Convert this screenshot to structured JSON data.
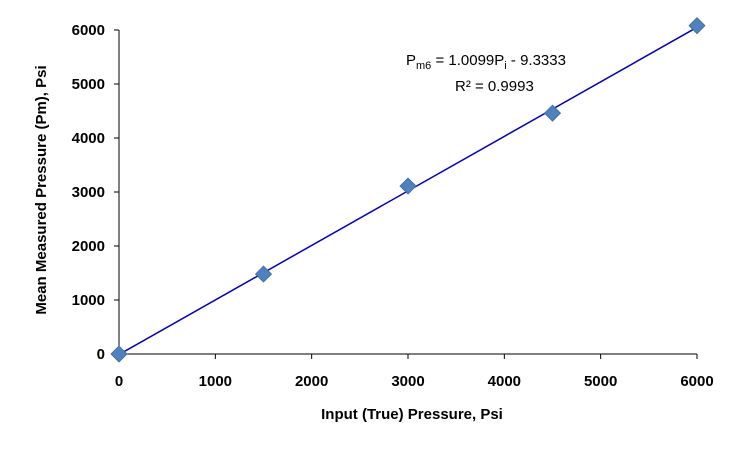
{
  "chart_data": {
    "type": "scatter",
    "title": "",
    "xlabel": "Input (True) Pressure, Psi",
    "ylabel": "Mean Measured Pressure (Pm), Psi",
    "xlim": [
      0,
      6000
    ],
    "ylim": [
      0,
      6000
    ],
    "x_ticks": [
      0,
      1000,
      2000,
      3000,
      4000,
      5000,
      6000
    ],
    "y_ticks": [
      0,
      1000,
      2000,
      3000,
      4000,
      5000,
      6000
    ],
    "x_tick_labels": [
      "0",
      "1000",
      "2000",
      "3000",
      "4000",
      "5000",
      "6000"
    ],
    "y_tick_labels": [
      "0",
      "1000",
      "2000",
      "3000",
      "4000",
      "5000",
      "6000"
    ],
    "grid": false,
    "legend": "none",
    "series": [
      {
        "name": "Mean measured pressure",
        "marker": "diamond",
        "color": "#4F81BD",
        "x": [
          0,
          1500,
          3000,
          4500,
          6000
        ],
        "y": [
          0,
          1480,
          3110,
          4460,
          6080
        ]
      }
    ],
    "trendline": {
      "type": "linear",
      "slope": 1.0099,
      "intercept": -9.3333,
      "color": "#0000C0",
      "x_range": [
        0,
        6000
      ]
    },
    "annotation": {
      "eq_prefix": "P",
      "eq_prefix_sub": "m6",
      "eq_middle": " = 1.0099P",
      "eq_var_sub": "i",
      "eq_suffix": " - 9.3333",
      "r_squared": "R² = 0.9993"
    }
  }
}
